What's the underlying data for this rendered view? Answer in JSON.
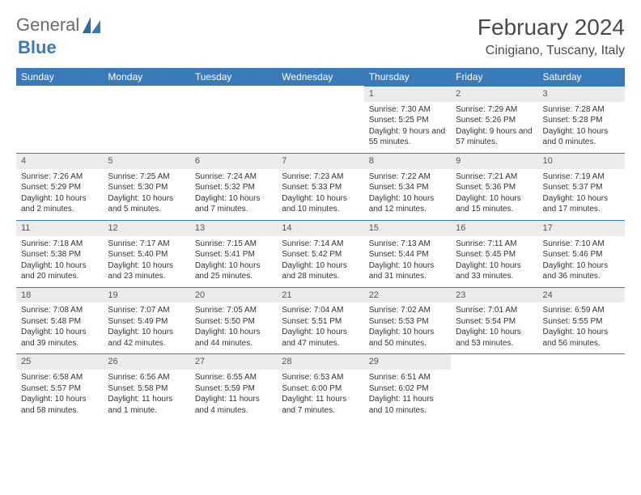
{
  "logo": {
    "text1": "General",
    "text2": "Blue"
  },
  "title": "February 2024",
  "location": "Cinigiano, Tuscany, Italy",
  "colors": {
    "header_bg": "#3a7ab8",
    "header_fg": "#ffffff",
    "daynum_bg": "#ececec",
    "row_border": "#3a7ab8",
    "text": "#333333",
    "page_bg": "#ffffff"
  },
  "dow": [
    "Sunday",
    "Monday",
    "Tuesday",
    "Wednesday",
    "Thursday",
    "Friday",
    "Saturday"
  ],
  "weeks": [
    [
      {
        "n": "",
        "sr": "",
        "ss": "",
        "dl": ""
      },
      {
        "n": "",
        "sr": "",
        "ss": "",
        "dl": ""
      },
      {
        "n": "",
        "sr": "",
        "ss": "",
        "dl": ""
      },
      {
        "n": "",
        "sr": "",
        "ss": "",
        "dl": ""
      },
      {
        "n": "1",
        "sr": "Sunrise: 7:30 AM",
        "ss": "Sunset: 5:25 PM",
        "dl": "Daylight: 9 hours and 55 minutes."
      },
      {
        "n": "2",
        "sr": "Sunrise: 7:29 AM",
        "ss": "Sunset: 5:26 PM",
        "dl": "Daylight: 9 hours and 57 minutes."
      },
      {
        "n": "3",
        "sr": "Sunrise: 7:28 AM",
        "ss": "Sunset: 5:28 PM",
        "dl": "Daylight: 10 hours and 0 minutes."
      }
    ],
    [
      {
        "n": "4",
        "sr": "Sunrise: 7:26 AM",
        "ss": "Sunset: 5:29 PM",
        "dl": "Daylight: 10 hours and 2 minutes."
      },
      {
        "n": "5",
        "sr": "Sunrise: 7:25 AM",
        "ss": "Sunset: 5:30 PM",
        "dl": "Daylight: 10 hours and 5 minutes."
      },
      {
        "n": "6",
        "sr": "Sunrise: 7:24 AM",
        "ss": "Sunset: 5:32 PM",
        "dl": "Daylight: 10 hours and 7 minutes."
      },
      {
        "n": "7",
        "sr": "Sunrise: 7:23 AM",
        "ss": "Sunset: 5:33 PM",
        "dl": "Daylight: 10 hours and 10 minutes."
      },
      {
        "n": "8",
        "sr": "Sunrise: 7:22 AM",
        "ss": "Sunset: 5:34 PM",
        "dl": "Daylight: 10 hours and 12 minutes."
      },
      {
        "n": "9",
        "sr": "Sunrise: 7:21 AM",
        "ss": "Sunset: 5:36 PM",
        "dl": "Daylight: 10 hours and 15 minutes."
      },
      {
        "n": "10",
        "sr": "Sunrise: 7:19 AM",
        "ss": "Sunset: 5:37 PM",
        "dl": "Daylight: 10 hours and 17 minutes."
      }
    ],
    [
      {
        "n": "11",
        "sr": "Sunrise: 7:18 AM",
        "ss": "Sunset: 5:38 PM",
        "dl": "Daylight: 10 hours and 20 minutes."
      },
      {
        "n": "12",
        "sr": "Sunrise: 7:17 AM",
        "ss": "Sunset: 5:40 PM",
        "dl": "Daylight: 10 hours and 23 minutes."
      },
      {
        "n": "13",
        "sr": "Sunrise: 7:15 AM",
        "ss": "Sunset: 5:41 PM",
        "dl": "Daylight: 10 hours and 25 minutes."
      },
      {
        "n": "14",
        "sr": "Sunrise: 7:14 AM",
        "ss": "Sunset: 5:42 PM",
        "dl": "Daylight: 10 hours and 28 minutes."
      },
      {
        "n": "15",
        "sr": "Sunrise: 7:13 AM",
        "ss": "Sunset: 5:44 PM",
        "dl": "Daylight: 10 hours and 31 minutes."
      },
      {
        "n": "16",
        "sr": "Sunrise: 7:11 AM",
        "ss": "Sunset: 5:45 PM",
        "dl": "Daylight: 10 hours and 33 minutes."
      },
      {
        "n": "17",
        "sr": "Sunrise: 7:10 AM",
        "ss": "Sunset: 5:46 PM",
        "dl": "Daylight: 10 hours and 36 minutes."
      }
    ],
    [
      {
        "n": "18",
        "sr": "Sunrise: 7:08 AM",
        "ss": "Sunset: 5:48 PM",
        "dl": "Daylight: 10 hours and 39 minutes."
      },
      {
        "n": "19",
        "sr": "Sunrise: 7:07 AM",
        "ss": "Sunset: 5:49 PM",
        "dl": "Daylight: 10 hours and 42 minutes."
      },
      {
        "n": "20",
        "sr": "Sunrise: 7:05 AM",
        "ss": "Sunset: 5:50 PM",
        "dl": "Daylight: 10 hours and 44 minutes."
      },
      {
        "n": "21",
        "sr": "Sunrise: 7:04 AM",
        "ss": "Sunset: 5:51 PM",
        "dl": "Daylight: 10 hours and 47 minutes."
      },
      {
        "n": "22",
        "sr": "Sunrise: 7:02 AM",
        "ss": "Sunset: 5:53 PM",
        "dl": "Daylight: 10 hours and 50 minutes."
      },
      {
        "n": "23",
        "sr": "Sunrise: 7:01 AM",
        "ss": "Sunset: 5:54 PM",
        "dl": "Daylight: 10 hours and 53 minutes."
      },
      {
        "n": "24",
        "sr": "Sunrise: 6:59 AM",
        "ss": "Sunset: 5:55 PM",
        "dl": "Daylight: 10 hours and 56 minutes."
      }
    ],
    [
      {
        "n": "25",
        "sr": "Sunrise: 6:58 AM",
        "ss": "Sunset: 5:57 PM",
        "dl": "Daylight: 10 hours and 58 minutes."
      },
      {
        "n": "26",
        "sr": "Sunrise: 6:56 AM",
        "ss": "Sunset: 5:58 PM",
        "dl": "Daylight: 11 hours and 1 minute."
      },
      {
        "n": "27",
        "sr": "Sunrise: 6:55 AM",
        "ss": "Sunset: 5:59 PM",
        "dl": "Daylight: 11 hours and 4 minutes."
      },
      {
        "n": "28",
        "sr": "Sunrise: 6:53 AM",
        "ss": "Sunset: 6:00 PM",
        "dl": "Daylight: 11 hours and 7 minutes."
      },
      {
        "n": "29",
        "sr": "Sunrise: 6:51 AM",
        "ss": "Sunset: 6:02 PM",
        "dl": "Daylight: 11 hours and 10 minutes."
      },
      {
        "n": "",
        "sr": "",
        "ss": "",
        "dl": ""
      },
      {
        "n": "",
        "sr": "",
        "ss": "",
        "dl": ""
      }
    ]
  ]
}
